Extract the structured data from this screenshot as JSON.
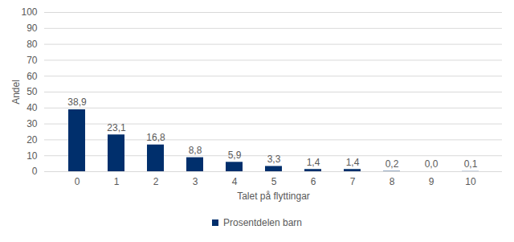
{
  "chart_data": {
    "type": "bar",
    "x_label": "Talet på flyttingar",
    "y_label": "Andel",
    "categories": [
      "0",
      "1",
      "2",
      "3",
      "4",
      "5",
      "6",
      "7",
      "8",
      "9",
      "10"
    ],
    "series": [
      {
        "name": "Prosentdelen barn",
        "color": "#002f6c",
        "values": [
          38.9,
          23.1,
          16.8,
          8.8,
          5.9,
          3.3,
          1.4,
          1.4,
          0.2,
          0.0,
          0.1
        ],
        "value_labels": [
          "38,9",
          "23,1",
          "16,8",
          "8,8",
          "5,9",
          "3,3",
          "1,4",
          "1,4",
          "0,2",
          "0,0",
          "0,1"
        ]
      }
    ],
    "ylim": [
      0,
      100
    ],
    "yticks": [
      0,
      10,
      20,
      30,
      40,
      50,
      60,
      70,
      80,
      90,
      100
    ],
    "grid": true,
    "data_labels": true,
    "legend": "bottom"
  }
}
